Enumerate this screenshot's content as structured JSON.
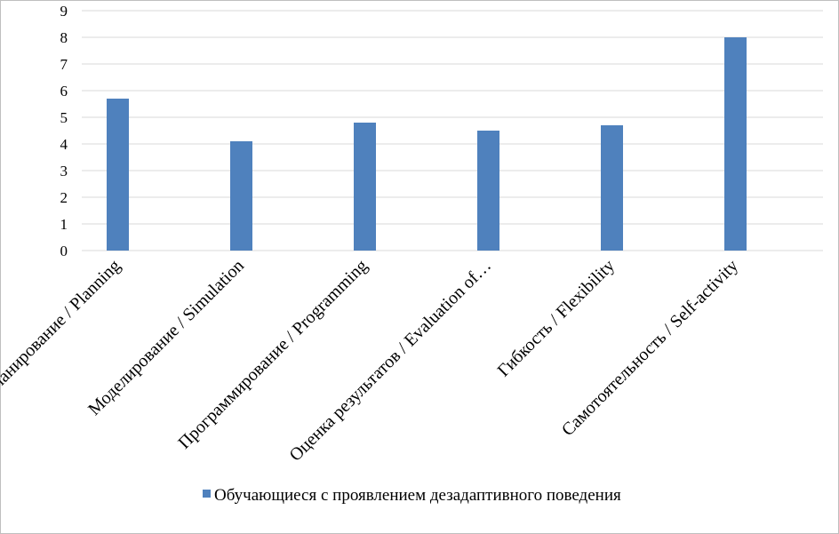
{
  "chart_data": {
    "type": "bar",
    "categories": [
      "Планирование / Planning",
      "Моделирование / Simulation",
      "Программирование / Programming",
      "Оценка результатов / Evaluation of…",
      "Гибкость / Flexibility",
      "Самотоятельность / Self-activity"
    ],
    "series": [
      {
        "name": "Обучающиеся с проявлением дезадаптивного поведения",
        "values": [
          5.7,
          4.1,
          4.8,
          4.5,
          4.7,
          8.0
        ],
        "color": "#4f81bd"
      }
    ],
    "ylim": [
      0,
      9
    ],
    "yticks": [
      "0",
      "1",
      "2",
      "3",
      "4",
      "5",
      "6",
      "7",
      "8",
      "9"
    ],
    "grid": true,
    "legend_position": "bottom",
    "title": "",
    "xlabel": "",
    "ylabel": ""
  },
  "colors": {
    "gridline": "#d9d9d9",
    "axis": "#d9d9d9",
    "border": "#bfbfbf"
  }
}
